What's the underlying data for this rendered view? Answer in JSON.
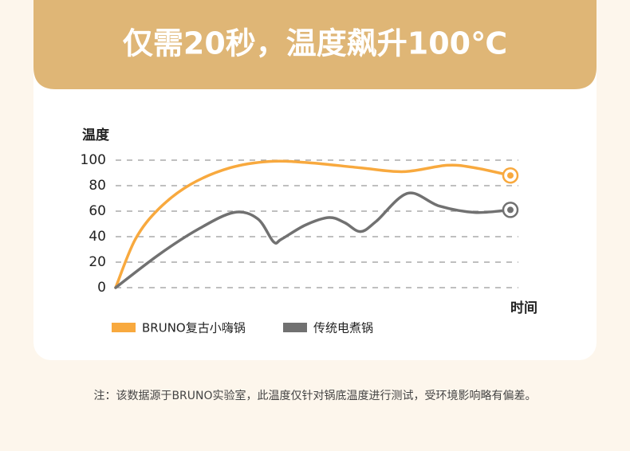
{
  "title": "仅需20秒，温度飙升100℃",
  "chart_data": {
    "type": "line",
    "y_label": "温度",
    "x_label": "时间",
    "ylim": [
      0,
      100
    ],
    "yticks": [
      0,
      20,
      40,
      60,
      80,
      100
    ],
    "xlim": [
      0,
      100
    ],
    "grid": true,
    "legend": "bottom-left",
    "series": [
      {
        "name": "BRUNO复古小嗨锅",
        "color": "#f8a93e",
        "x": [
          0,
          5,
          11,
          19,
          29,
          39,
          49,
          62,
          73,
          84,
          91,
          100
        ],
        "values": [
          0,
          38,
          62,
          81,
          94,
          99,
          98,
          94,
          91,
          96,
          94,
          88
        ]
      },
      {
        "name": "传统电煮锅",
        "color": "#717171",
        "x": [
          0,
          11,
          21,
          30,
          36,
          40,
          42,
          48,
          54,
          58,
          62,
          66,
          74,
          82,
          91,
          100
        ],
        "values": [
          0,
          26,
          46,
          59,
          54,
          36,
          38,
          49,
          55,
          51,
          44,
          52,
          74,
          64,
          59,
          61
        ]
      }
    ]
  },
  "note": "注：该数据源于BRUNO实验室，此温度仅针对锅底温度进行测试，受环境影响略有偏差。"
}
